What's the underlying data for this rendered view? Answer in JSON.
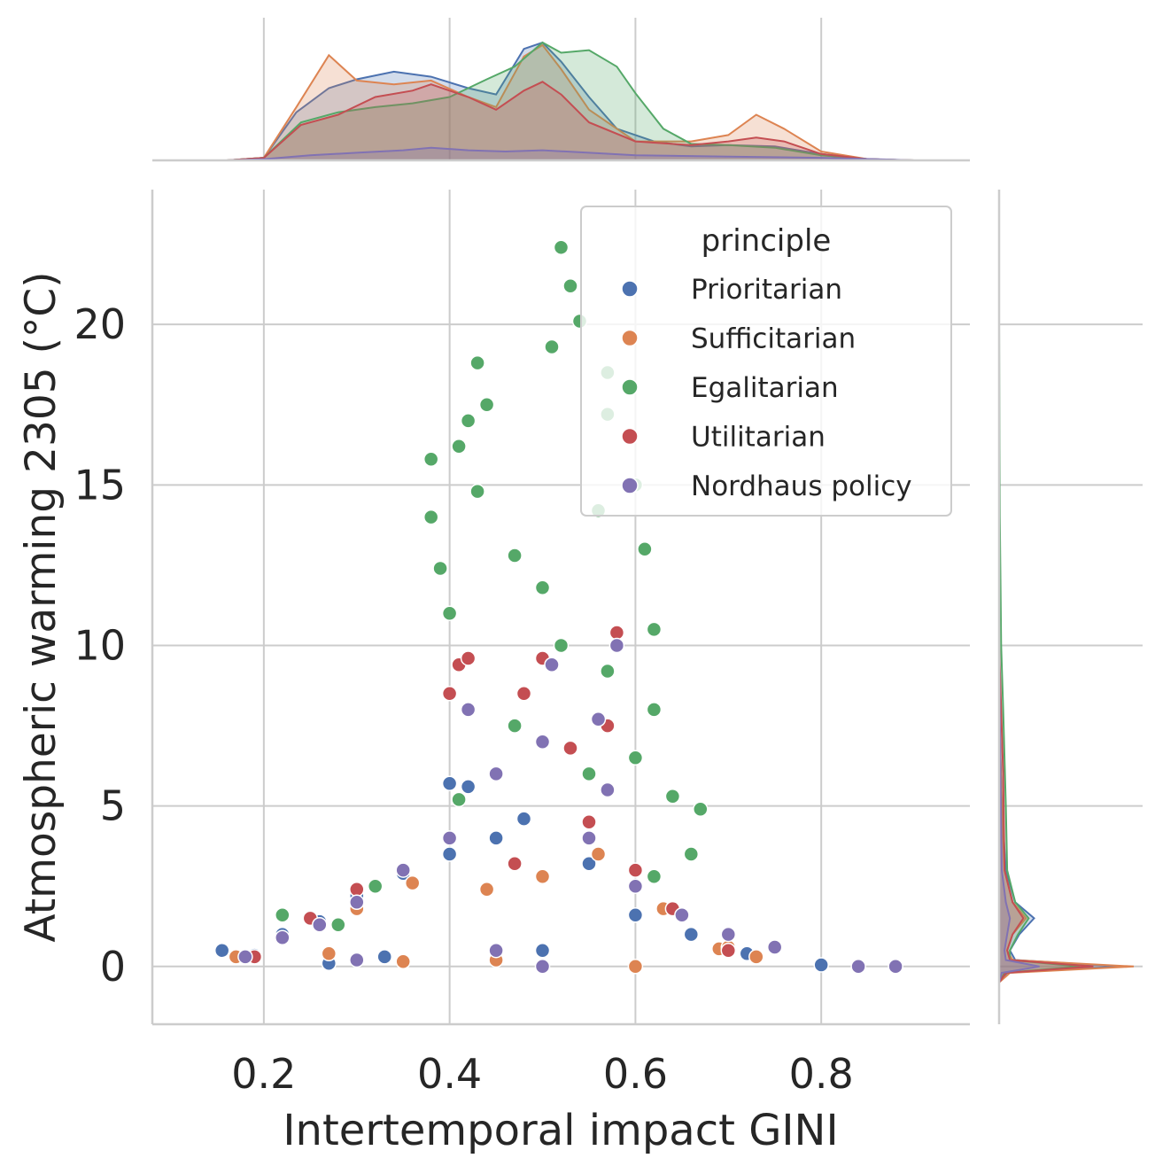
{
  "chart_data": {
    "type": "scatter",
    "title": "",
    "xlabel": "Intertemporal impact GINI",
    "ylabel": "Atmospheric warming 2305 (°C)",
    "xlim": [
      0.08,
      0.96
    ],
    "ylim": [
      -1.8,
      24.2
    ],
    "xticks": [
      0.2,
      0.4,
      0.6,
      0.8
    ],
    "xtick_labels": [
      "0.2",
      "0.4",
      "0.6",
      "0.8"
    ],
    "yticks": [
      0,
      5,
      10,
      15,
      20
    ],
    "ytick_labels": [
      "0",
      "5",
      "10",
      "15",
      "20"
    ],
    "grid": true,
    "legend": {
      "title": "principle",
      "placement": "top-right"
    },
    "marginals": {
      "top": "kde of x per series",
      "right": "kde of y per series"
    },
    "series": [
      {
        "name": "Prioritarian",
        "color": "#4c72b0",
        "points": [
          [
            0.155,
            0.5
          ],
          [
            0.19,
            0.35
          ],
          [
            0.22,
            1.0
          ],
          [
            0.26,
            1.4
          ],
          [
            0.3,
            2.2
          ],
          [
            0.35,
            2.9
          ],
          [
            0.4,
            3.5
          ],
          [
            0.45,
            4.0
          ],
          [
            0.48,
            4.6
          ],
          [
            0.42,
            5.6
          ],
          [
            0.4,
            5.7
          ],
          [
            0.55,
            3.2
          ],
          [
            0.6,
            1.6
          ],
          [
            0.66,
            1.0
          ],
          [
            0.72,
            0.4
          ],
          [
            0.8,
            0.05
          ],
          [
            0.88,
            0.0
          ],
          [
            0.27,
            0.1
          ],
          [
            0.33,
            0.3
          ],
          [
            0.5,
            0.5
          ]
        ],
        "kde_x": [
          [
            0.16,
            0
          ],
          [
            0.2,
            0.02
          ],
          [
            0.235,
            0.38
          ],
          [
            0.27,
            0.57
          ],
          [
            0.3,
            0.64
          ],
          [
            0.34,
            0.7
          ],
          [
            0.38,
            0.66
          ],
          [
            0.42,
            0.57
          ],
          [
            0.45,
            0.52
          ],
          [
            0.48,
            0.88
          ],
          [
            0.5,
            0.93
          ],
          [
            0.52,
            0.78
          ],
          [
            0.55,
            0.5
          ],
          [
            0.58,
            0.25
          ],
          [
            0.62,
            0.15
          ],
          [
            0.66,
            0.11
          ],
          [
            0.7,
            0.12
          ],
          [
            0.75,
            0.11
          ],
          [
            0.8,
            0.05
          ],
          [
            0.85,
            0.01
          ],
          [
            0.9,
            0
          ]
        ],
        "kde_y": [
          [
            -0.5,
            0
          ],
          [
            -0.2,
            0.06
          ],
          [
            0.0,
            0.9
          ],
          [
            0.2,
            0.12
          ],
          [
            0.5,
            0.08
          ],
          [
            1.0,
            0.15
          ],
          [
            1.5,
            0.26
          ],
          [
            2.0,
            0.12
          ],
          [
            3.0,
            0.05
          ],
          [
            5.0,
            0.02
          ],
          [
            8.0,
            0
          ]
        ]
      },
      {
        "name": "Sufficitarian",
        "color": "#dd8452",
        "points": [
          [
            0.17,
            0.3
          ],
          [
            0.27,
            0.4
          ],
          [
            0.3,
            1.8
          ],
          [
            0.36,
            2.6
          ],
          [
            0.44,
            2.4
          ],
          [
            0.5,
            2.8
          ],
          [
            0.56,
            3.5
          ],
          [
            0.63,
            1.8
          ],
          [
            0.69,
            0.55
          ],
          [
            0.7,
            0.6
          ],
          [
            0.73,
            0.3
          ],
          [
            0.6,
            0.0
          ],
          [
            0.45,
            0.2
          ],
          [
            0.35,
            0.15
          ]
        ],
        "kde_x": [
          [
            0.16,
            0
          ],
          [
            0.2,
            0.02
          ],
          [
            0.235,
            0.42
          ],
          [
            0.27,
            0.83
          ],
          [
            0.3,
            0.63
          ],
          [
            0.34,
            0.6
          ],
          [
            0.38,
            0.63
          ],
          [
            0.42,
            0.5
          ],
          [
            0.45,
            0.42
          ],
          [
            0.48,
            0.82
          ],
          [
            0.5,
            0.91
          ],
          [
            0.52,
            0.72
          ],
          [
            0.55,
            0.4
          ],
          [
            0.6,
            0.15
          ],
          [
            0.66,
            0.15
          ],
          [
            0.7,
            0.2
          ],
          [
            0.73,
            0.36
          ],
          [
            0.76,
            0.25
          ],
          [
            0.8,
            0.07
          ],
          [
            0.85,
            0.01
          ],
          [
            0.9,
            0
          ]
        ],
        "kde_y": [
          [
            -0.5,
            0
          ],
          [
            -0.2,
            0.08
          ],
          [
            0.0,
            1.0
          ],
          [
            0.2,
            0.1
          ],
          [
            0.5,
            0.06
          ],
          [
            1.0,
            0.1
          ],
          [
            1.5,
            0.2
          ],
          [
            2.0,
            0.1
          ],
          [
            3.0,
            0.04
          ],
          [
            5.0,
            0.02
          ],
          [
            8.0,
            0
          ]
        ]
      },
      {
        "name": "Egalitarian",
        "color": "#55a868",
        "points": [
          [
            0.52,
            22.4
          ],
          [
            0.53,
            21.2
          ],
          [
            0.54,
            20.1
          ],
          [
            0.51,
            19.3
          ],
          [
            0.43,
            18.8
          ],
          [
            0.57,
            18.5
          ],
          [
            0.42,
            17.0
          ],
          [
            0.44,
            17.5
          ],
          [
            0.57,
            17.2
          ],
          [
            0.41,
            16.2
          ],
          [
            0.38,
            15.8
          ],
          [
            0.43,
            14.8
          ],
          [
            0.38,
            14.0
          ],
          [
            0.39,
            12.4
          ],
          [
            0.4,
            11.0
          ],
          [
            0.47,
            12.8
          ],
          [
            0.5,
            11.8
          ],
          [
            0.56,
            14.2
          ],
          [
            0.6,
            15.0
          ],
          [
            0.61,
            13.0
          ],
          [
            0.62,
            10.5
          ],
          [
            0.57,
            9.2
          ],
          [
            0.62,
            8.0
          ],
          [
            0.6,
            6.5
          ],
          [
            0.64,
            5.3
          ],
          [
            0.67,
            4.9
          ],
          [
            0.66,
            3.5
          ],
          [
            0.62,
            2.8
          ],
          [
            0.55,
            6.0
          ],
          [
            0.47,
            7.5
          ],
          [
            0.45,
            6.0
          ],
          [
            0.52,
            10.0
          ],
          [
            0.41,
            5.2
          ],
          [
            0.28,
            1.3
          ],
          [
            0.22,
            1.6
          ],
          [
            0.32,
            2.5
          ]
        ],
        "kde_x": [
          [
            0.16,
            0
          ],
          [
            0.2,
            0.02
          ],
          [
            0.24,
            0.3
          ],
          [
            0.28,
            0.38
          ],
          [
            0.32,
            0.42
          ],
          [
            0.36,
            0.45
          ],
          [
            0.4,
            0.5
          ],
          [
            0.44,
            0.64
          ],
          [
            0.47,
            0.74
          ],
          [
            0.5,
            0.93
          ],
          [
            0.52,
            0.85
          ],
          [
            0.55,
            0.87
          ],
          [
            0.58,
            0.74
          ],
          [
            0.6,
            0.53
          ],
          [
            0.63,
            0.25
          ],
          [
            0.66,
            0.13
          ],
          [
            0.7,
            0.12
          ],
          [
            0.75,
            0.1
          ],
          [
            0.8,
            0.04
          ],
          [
            0.85,
            0.01
          ],
          [
            0.9,
            0
          ]
        ],
        "kde_y": [
          [
            -0.5,
            0
          ],
          [
            -0.2,
            0.04
          ],
          [
            0.0,
            0.6
          ],
          [
            0.2,
            0.08
          ],
          [
            0.5,
            0.08
          ],
          [
            1.0,
            0.14
          ],
          [
            1.5,
            0.22
          ],
          [
            2.0,
            0.12
          ],
          [
            3.0,
            0.06
          ],
          [
            5.0,
            0.05
          ],
          [
            8.0,
            0.03
          ],
          [
            10.0,
            0.015
          ],
          [
            14.0,
            0.005
          ],
          [
            20.0,
            0
          ]
        ]
      },
      {
        "name": "Utilitarian",
        "color": "#c44e52",
        "points": [
          [
            0.19,
            0.3
          ],
          [
            0.25,
            1.5
          ],
          [
            0.3,
            2.4
          ],
          [
            0.4,
            8.5
          ],
          [
            0.41,
            9.4
          ],
          [
            0.42,
            9.6
          ],
          [
            0.48,
            8.5
          ],
          [
            0.5,
            9.6
          ],
          [
            0.58,
            10.4
          ],
          [
            0.57,
            7.5
          ],
          [
            0.53,
            6.8
          ],
          [
            0.47,
            3.2
          ],
          [
            0.6,
            3.0
          ],
          [
            0.64,
            1.8
          ],
          [
            0.7,
            0.5
          ],
          [
            0.55,
            4.5
          ]
        ],
        "kde_x": [
          [
            0.16,
            0
          ],
          [
            0.2,
            0.02
          ],
          [
            0.24,
            0.28
          ],
          [
            0.28,
            0.36
          ],
          [
            0.32,
            0.5
          ],
          [
            0.36,
            0.55
          ],
          [
            0.38,
            0.6
          ],
          [
            0.42,
            0.5
          ],
          [
            0.45,
            0.4
          ],
          [
            0.48,
            0.55
          ],
          [
            0.5,
            0.62
          ],
          [
            0.52,
            0.52
          ],
          [
            0.55,
            0.3
          ],
          [
            0.6,
            0.15
          ],
          [
            0.66,
            0.12
          ],
          [
            0.7,
            0.15
          ],
          [
            0.73,
            0.18
          ],
          [
            0.76,
            0.15
          ],
          [
            0.8,
            0.05
          ],
          [
            0.85,
            0.01
          ],
          [
            0.9,
            0
          ]
        ],
        "kde_y": [
          [
            -0.5,
            0
          ],
          [
            -0.2,
            0.05
          ],
          [
            0.0,
            0.7
          ],
          [
            0.2,
            0.08
          ],
          [
            0.5,
            0.06
          ],
          [
            1.0,
            0.1
          ],
          [
            1.5,
            0.18
          ],
          [
            2.0,
            0.1
          ],
          [
            3.0,
            0.04
          ],
          [
            6.0,
            0.03
          ],
          [
            10.0,
            0
          ]
        ]
      },
      {
        "name": "Nordhaus policy",
        "color": "#8172b3",
        "points": [
          [
            0.18,
            0.3
          ],
          [
            0.22,
            0.9
          ],
          [
            0.26,
            1.3
          ],
          [
            0.3,
            2.0
          ],
          [
            0.35,
            3.0
          ],
          [
            0.4,
            4.0
          ],
          [
            0.42,
            8.0
          ],
          [
            0.45,
            6.0
          ],
          [
            0.5,
            7.0
          ],
          [
            0.51,
            9.4
          ],
          [
            0.58,
            10.0
          ],
          [
            0.56,
            7.7
          ],
          [
            0.57,
            5.5
          ],
          [
            0.55,
            4.0
          ],
          [
            0.6,
            2.5
          ],
          [
            0.65,
            1.6
          ],
          [
            0.7,
            1.0
          ],
          [
            0.75,
            0.6
          ],
          [
            0.84,
            0.0
          ],
          [
            0.88,
            0.0
          ],
          [
            0.45,
            0.5
          ],
          [
            0.3,
            0.2
          ],
          [
            0.5,
            0.0
          ]
        ],
        "kde_x": [
          [
            0.16,
            0
          ],
          [
            0.2,
            0.01
          ],
          [
            0.25,
            0.04
          ],
          [
            0.3,
            0.06
          ],
          [
            0.35,
            0.08
          ],
          [
            0.38,
            0.1
          ],
          [
            0.42,
            0.08
          ],
          [
            0.46,
            0.07
          ],
          [
            0.5,
            0.08
          ],
          [
            0.55,
            0.06
          ],
          [
            0.6,
            0.04
          ],
          [
            0.7,
            0.03
          ],
          [
            0.8,
            0.02
          ],
          [
            0.88,
            0.005
          ],
          [
            0.9,
            0
          ]
        ],
        "kde_y": [
          [
            -0.5,
            0
          ],
          [
            -0.2,
            0.02
          ],
          [
            0.0,
            0.3
          ],
          [
            0.2,
            0.05
          ],
          [
            0.5,
            0.04
          ],
          [
            1.0,
            0.06
          ],
          [
            1.5,
            0.08
          ],
          [
            2.0,
            0.05
          ],
          [
            3.0,
            0.02
          ],
          [
            6.0,
            0.01
          ],
          [
            10.0,
            0
          ]
        ]
      }
    ]
  }
}
